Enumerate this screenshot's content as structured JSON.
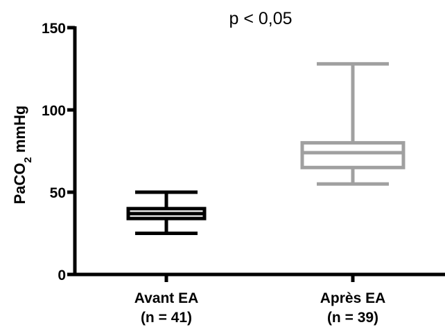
{
  "chart_data": {
    "type": "boxplot",
    "title": "",
    "annotation": "p < 0,05",
    "ylabel": {
      "main": "PaCO",
      "sub": "2",
      "unit": " mmHg"
    },
    "ylim": [
      0,
      150
    ],
    "yticks": [
      0,
      50,
      100,
      150
    ],
    "categories": [
      {
        "name": "Avant EA",
        "n": "(n = 41)"
      },
      {
        "name": "Après EA",
        "n": "(n = 39)"
      }
    ],
    "boxes": [
      {
        "category": "Avant EA",
        "min": 25,
        "q1": 34,
        "median": 37,
        "q3": 40,
        "max": 50,
        "color": "#000000"
      },
      {
        "category": "Après EA",
        "min": 55,
        "q1": 65,
        "median": 74,
        "q3": 80,
        "max": 128,
        "color": "#a0a0a0"
      }
    ],
    "grid": false,
    "legend": "none"
  }
}
